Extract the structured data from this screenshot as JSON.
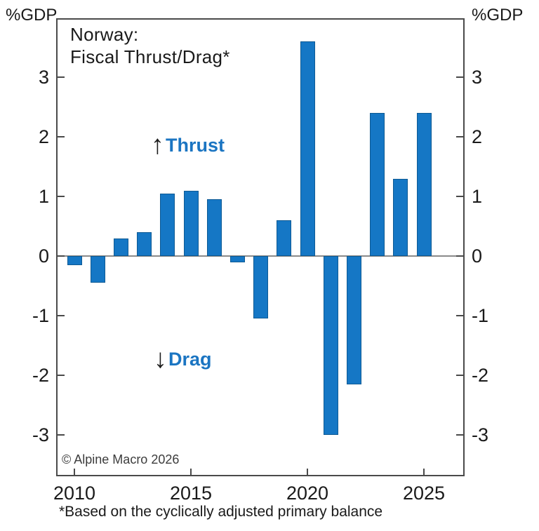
{
  "axis_corner_labels": {
    "left": "%GDP",
    "right": "%GDP"
  },
  "chart_data": {
    "type": "bar",
    "title_line1": "Norway:",
    "title_line2": "Fiscal Thrust/Drag*",
    "categories": [
      "2010",
      "2011",
      "2012",
      "2013",
      "2014",
      "2015",
      "2016",
      "2017",
      "2018",
      "2019",
      "2020",
      "2021",
      "2022",
      "2023",
      "2024",
      "2025"
    ],
    "values": [
      -0.15,
      -0.45,
      0.3,
      0.4,
      1.05,
      1.1,
      0.95,
      -0.1,
      -1.05,
      0.6,
      3.6,
      -3.0,
      -2.15,
      2.4,
      1.3,
      2.4
    ],
    "ylabel_left": "%GDP",
    "ylabel_right": "%GDP",
    "ylim": [
      -3.7,
      4.0
    ],
    "yticks": [
      3,
      2,
      1,
      0,
      -1,
      -2,
      -3
    ],
    "ytick_labels": [
      "3",
      "2",
      "1",
      "0",
      "-1",
      "-2",
      "-3"
    ],
    "xtick_labels": [
      "2010",
      "2015",
      "2020",
      "2025"
    ],
    "xtick_indices": [
      0,
      5,
      10,
      15
    ],
    "grid": false,
    "legend": null,
    "bar_color": "#1577c5",
    "bar_border_color": "#0e5a94",
    "units": "%GDP"
  },
  "annotations": {
    "thrust": {
      "arrow": "↑",
      "label": "Thrust",
      "color": "#1b75c2"
    },
    "drag": {
      "arrow": "↓",
      "label": "Drag",
      "color": "#1b75c2"
    }
  },
  "copyright": "© Alpine Macro 2026",
  "footnote": "*Based on the cyclically adjusted primary balance"
}
